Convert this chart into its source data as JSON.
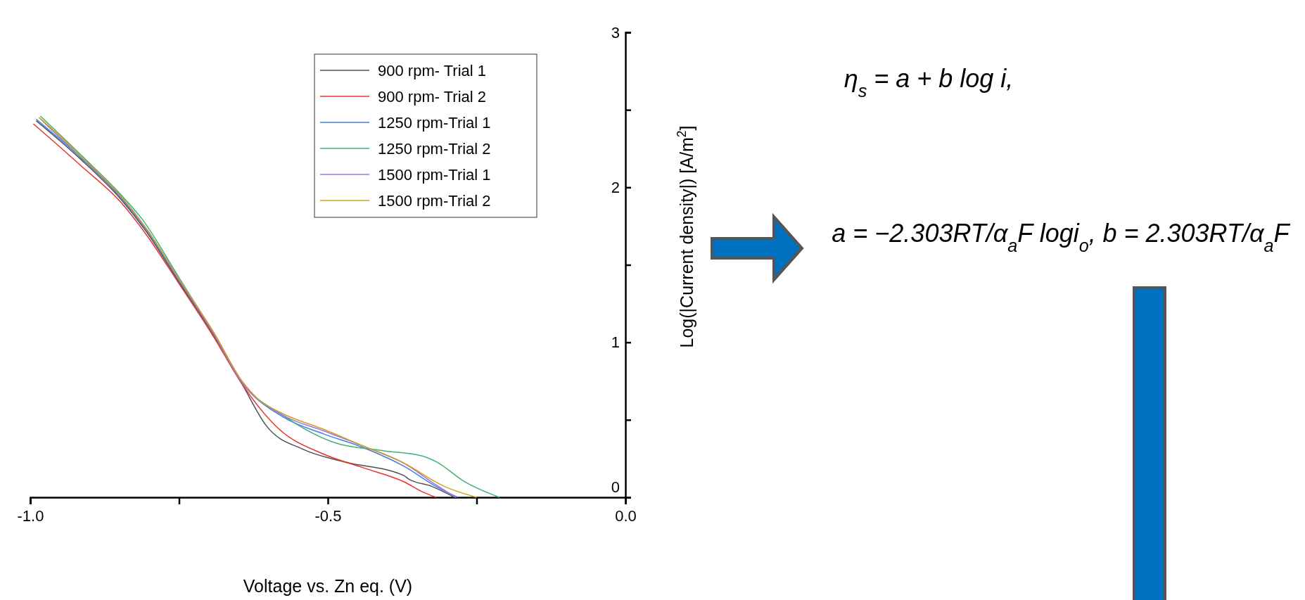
{
  "chart_data": {
    "type": "line",
    "xlabel": "Voltage vs. Zn eq. (V)",
    "ylabel": "Log(|Current density|) [A/m$^{2}$]",
    "xlim": [
      -1.0,
      0.0
    ],
    "xticks": [
      {
        "value": -1.0,
        "label": "-1.0"
      },
      {
        "value": -0.75,
        "label": null
      },
      {
        "value": -0.5,
        "label": "-0.5"
      },
      {
        "value": -0.25,
        "label": null
      },
      {
        "value": 0.0,
        "label": "0.0"
      }
    ],
    "ylim": [
      0,
      3
    ],
    "yticks": [
      0,
      {
        "value": 0.5,
        "label": null
      },
      1,
      {
        "value": 1.5,
        "label": null
      },
      2,
      {
        "value": 2.5,
        "label": null
      },
      3
    ],
    "grid": false,
    "legend": "top right",
    "line_style": "solid",
    "marker": "none",
    "annotations": [
      "η$_{s}$ = a + b log i,",
      "a = −2.303RT/α$_{a}$F logi$_{o}$,",
      "b = 2.303RT/α$_{a}$F"
    ],
    "series": [
      {
        "name": "900 rpm- Trial 1",
        "color": "#505050",
        "x": [
          -0.99,
          -0.95,
          -0.915,
          -0.847,
          -0.806,
          -0.752,
          -0.691,
          -0.644,
          -0.603,
          -0.542,
          -0.474,
          -0.372,
          -0.365,
          -0.325,
          -0.287
        ],
        "values": [
          2.43,
          2.3,
          2.18,
          1.92,
          1.72,
          1.4,
          1.04,
          0.73,
          0.46,
          0.31,
          0.23,
          0.14,
          0.12,
          0.07,
          0
        ]
      },
      {
        "name": "900 rpm- Trial 2",
        "color": "#e8322d",
        "x": [
          -0.995,
          -0.95,
          -0.915,
          -0.847,
          -0.806,
          -0.752,
          -0.691,
          -0.644,
          -0.582,
          -0.508,
          -0.44,
          -0.372,
          -0.338,
          -0.318
        ],
        "values": [
          2.41,
          2.26,
          2.14,
          1.9,
          1.7,
          1.39,
          1.03,
          0.73,
          0.44,
          0.28,
          0.19,
          0.1,
          0.03,
          0
        ]
      },
      {
        "name": "1250 rpm-Trial 1",
        "color": "#3d7ee6",
        "x": [
          -0.99,
          -0.95,
          -0.915,
          -0.847,
          -0.806,
          -0.752,
          -0.691,
          -0.644,
          -0.576,
          -0.508,
          -0.44,
          -0.372,
          -0.318,
          -0.282
        ],
        "values": [
          2.44,
          2.31,
          2.19,
          1.93,
          1.73,
          1.41,
          1.05,
          0.74,
          0.52,
          0.41,
          0.32,
          0.2,
          0.07,
          0
        ]
      },
      {
        "name": "1250 rpm-Trial 2",
        "color": "#3cb371",
        "x": [
          -0.983,
          -0.95,
          -0.915,
          -0.847,
          -0.813,
          -0.752,
          -0.691,
          -0.644,
          -0.576,
          -0.494,
          -0.406,
          -0.345,
          -0.318,
          -0.27,
          -0.212
        ],
        "values": [
          2.46,
          2.34,
          2.21,
          1.95,
          1.8,
          1.43,
          1.05,
          0.74,
          0.53,
          0.36,
          0.3,
          0.27,
          0.23,
          0.1,
          0
        ]
      },
      {
        "name": "1500 rpm-Trial 1",
        "color": "#a070e8",
        "x": [
          -0.985,
          -0.95,
          -0.915,
          -0.847,
          -0.806,
          -0.752,
          -0.691,
          -0.644,
          -0.576,
          -0.508,
          -0.44,
          -0.372,
          -0.318,
          -0.285
        ],
        "values": [
          2.45,
          2.32,
          2.2,
          1.94,
          1.74,
          1.42,
          1.05,
          0.74,
          0.53,
          0.43,
          0.33,
          0.22,
          0.08,
          0
        ]
      },
      {
        "name": "1500 rpm-Trial 2",
        "color": "#d4a017",
        "x": [
          -0.985,
          -0.95,
          -0.915,
          -0.847,
          -0.806,
          -0.752,
          -0.691,
          -0.644,
          -0.616,
          -0.576,
          -0.508,
          -0.44,
          -0.372,
          -0.304,
          -0.25
        ],
        "values": [
          2.45,
          2.33,
          2.2,
          1.94,
          1.74,
          1.42,
          1.06,
          0.75,
          0.63,
          0.54,
          0.44,
          0.33,
          0.22,
          0.07,
          0
        ]
      }
    ]
  }
}
